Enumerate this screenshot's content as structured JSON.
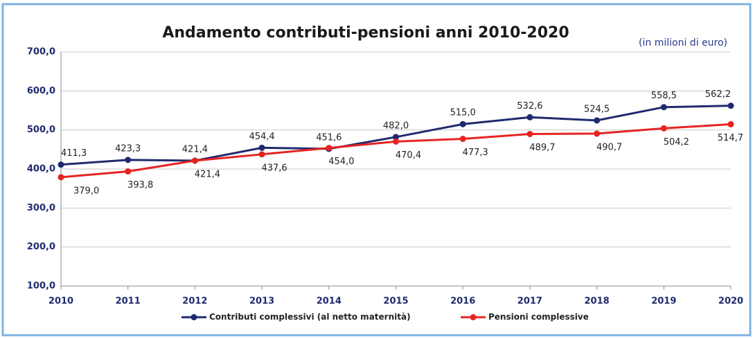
{
  "chart_data": {
    "type": "line",
    "title": "Andamento contributi-pensioni anni 2010-2020",
    "annotation": "(in milioni di euro)",
    "x": [
      2010,
      2011,
      2012,
      2013,
      2014,
      2015,
      2016,
      2017,
      2018,
      2019,
      2020
    ],
    "xlim": [
      2010,
      2020
    ],
    "xticks": [
      2010,
      2011,
      2012,
      2013,
      2014,
      2015,
      2016,
      2017,
      2018,
      2019,
      2020
    ],
    "ylim": [
      100,
      700
    ],
    "yticks": [
      {
        "value": 100,
        "label": "100,0"
      },
      {
        "value": 200,
        "label": "200,0"
      },
      {
        "value": 300,
        "label": "300,0"
      },
      {
        "value": 400,
        "label": "400,0"
      },
      {
        "value": 500,
        "label": "500,0"
      },
      {
        "value": 600,
        "label": "600,0"
      },
      {
        "value": 700,
        "label": "700,0"
      }
    ],
    "grid": true,
    "legend": "bottom",
    "series": [
      {
        "name": "Contributi complessivi (al netto maternità)",
        "color": "#1f2a6e",
        "values": [
          411.3,
          423.3,
          421.4,
          454.4,
          451.6,
          482.0,
          515.0,
          532.6,
          524.5,
          558.5,
          562.2
        ],
        "value_labels": [
          "411,3",
          "423,3",
          "421,4",
          "454,4",
          "451,6",
          "482,0",
          "515,0",
          "532,6",
          "524,5",
          "558,5",
          "562,2"
        ]
      },
      {
        "name": "Pensioni complessive",
        "color": "#e52421",
        "values": [
          379.0,
          393.8,
          421.4,
          437.6,
          454.0,
          470.4,
          477.3,
          489.7,
          490.7,
          504.2,
          514.7
        ],
        "value_labels": [
          "379,0",
          "393,8",
          "421,4",
          "437,6",
          "454,0",
          "470,4",
          "477,3",
          "489,7",
          "490,7",
          "504,2",
          "514,7"
        ]
      }
    ]
  }
}
